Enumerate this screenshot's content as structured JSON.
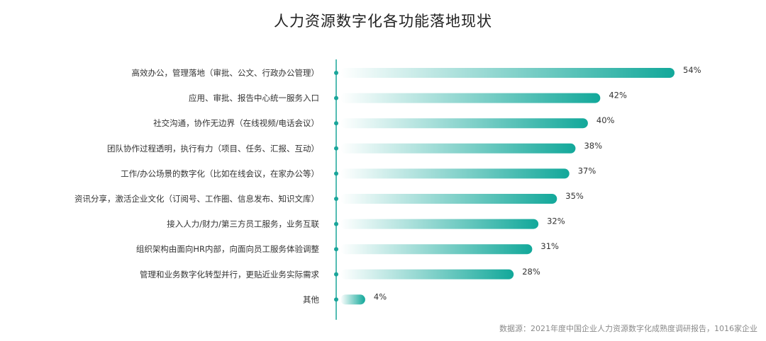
{
  "chart_data": {
    "type": "bar",
    "orientation": "horizontal",
    "title": "人力资源数字化各功能落地现状",
    "categories": [
      "高效办公，管理落地（审批、公文、行政办公管理）",
      "应用、审批、报告中心统一服务入口",
      "社交沟通，协作无边界（在线视频/电话会议）",
      "团队协作过程透明，执行有力（项目、任务、汇报、互动）",
      "工作/办公场景的数字化（比如在线会议，在家办公等）",
      "资讯分享，激活企业文化（订阅号、工作圈、信息发布、知识文库）",
      "接入人力/财力/第三方员工服务，业务互联",
      "组织架构由面向HR内部，向面向员工服务体验调整",
      "管理和业务数字化转型并行，更贴近业务实际需求",
      "其他"
    ],
    "values": [
      54,
      42,
      40,
      38,
      37,
      35,
      32,
      31,
      28,
      4
    ],
    "value_labels": [
      "54%",
      "42%",
      "40%",
      "38%",
      "37%",
      "35%",
      "32%",
      "31%",
      "28%",
      "4%"
    ],
    "xlim": [
      0,
      54
    ],
    "grid": false,
    "legend": "none",
    "colors": {
      "bar_start": "#ffffff",
      "bar_end": "#12a89a",
      "axis": "#1aa59a",
      "dot": "#1aa59a"
    }
  },
  "source": "数据源：2021年度中国企业人力资源数字化成熟度调研报告，1016家企业"
}
